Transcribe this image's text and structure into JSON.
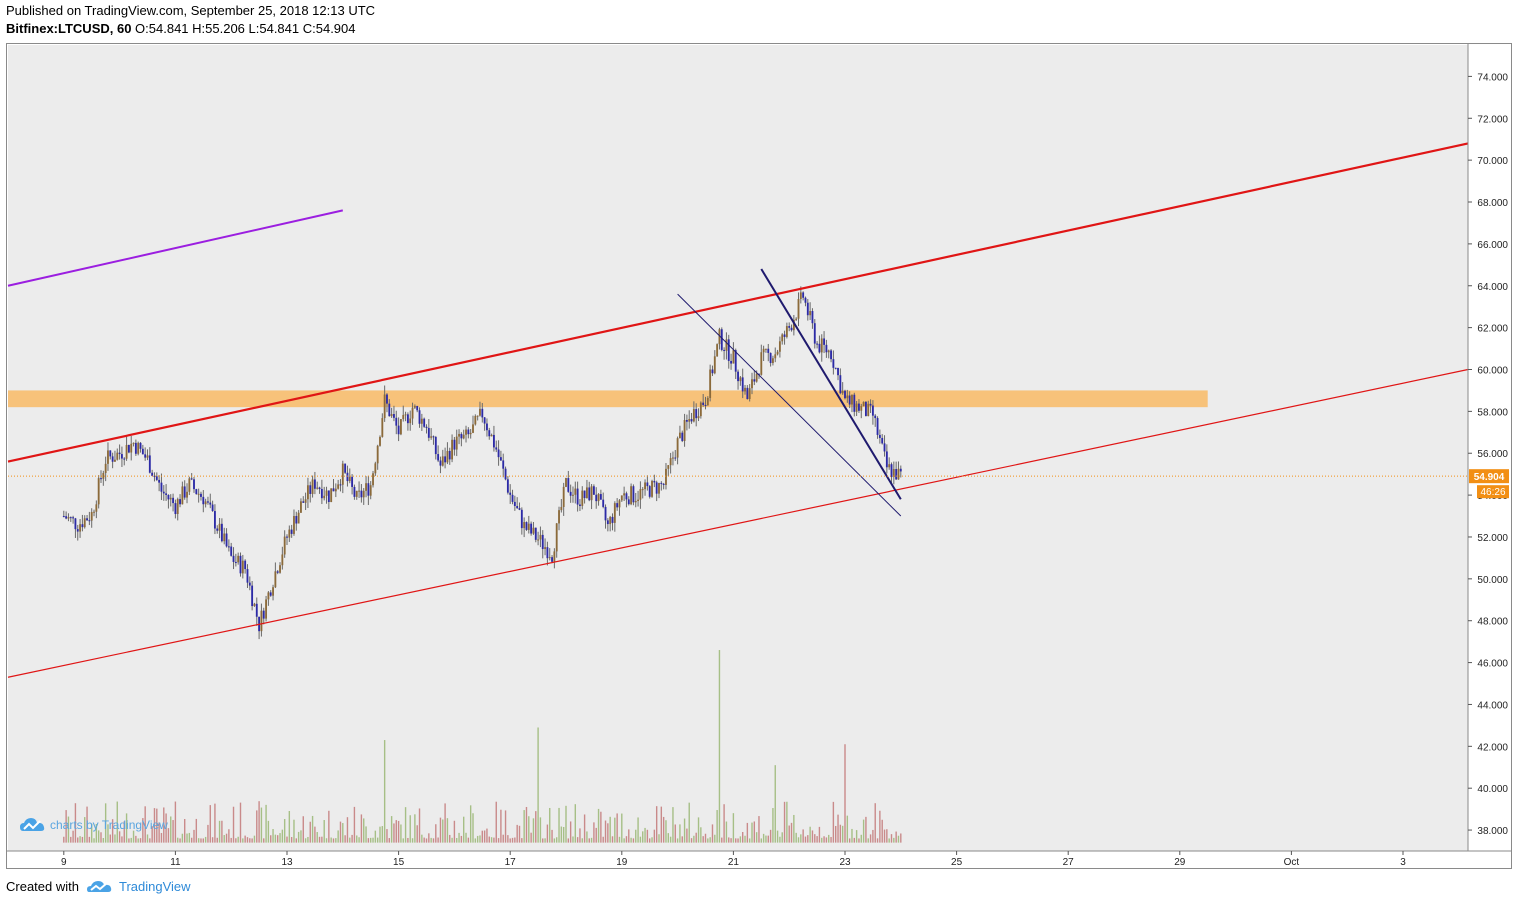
{
  "header": {
    "published": "Published on TradingView.com, September 25, 2018 12:13 UTC",
    "symbol": "Bitfinex:LTCUSD, 60",
    "ohlc": " O:54.841 H:55.206 L:54.841 C:54.904"
  },
  "footer": {
    "created_with": "Created with",
    "brand": "TradingView"
  },
  "watermark": {
    "text": "charts by TradingView"
  },
  "price_labels": {
    "last": "54.904",
    "countdown": "46:26"
  },
  "colors": {
    "plot_bg": "#ececec",
    "candle_up_body": "#8b6a3a",
    "candle_down_body": "#2c2aa6",
    "wick": "#6a6a6a",
    "vol_up": "#a6bf86",
    "vol_down": "#c98a8a",
    "channel_upper": "#e01515",
    "channel_lower": "#e01515",
    "purple_line": "#9b1ee0",
    "wedge": "#1f1a6e",
    "resistance_zone": "#f7c27a",
    "last_price": "#f28f14"
  },
  "icons": [
    "tradingview-logo-icon",
    "cloud-logo-icon"
  ],
  "chart_data": {
    "type": "candlestick",
    "title": "",
    "xlabel": "",
    "ylabel": "",
    "ylim": [
      37,
      75.5
    ],
    "grid": false,
    "y_ticks": [
      "38.000",
      "40.000",
      "42.000",
      "44.000",
      "46.000",
      "48.000",
      "50.000",
      "52.000",
      "54.000",
      "56.000",
      "58.000",
      "60.000",
      "62.000",
      "64.000",
      "66.000",
      "68.000",
      "70.000",
      "72.000",
      "74.000"
    ],
    "x_ticks": [
      "9",
      "11",
      "13",
      "15",
      "17",
      "19",
      "21",
      "23",
      "25",
      "27",
      "29",
      "Oct",
      "3"
    ],
    "price_path": [
      [
        "Sep 9 00:00",
        53.0
      ],
      [
        "Sep 9 06:00",
        52.6
      ],
      [
        "Sep 9 12:00",
        53.1
      ],
      [
        "Sep 9 18:00",
        55.7
      ],
      [
        "Sep 10 00:00",
        56.0
      ],
      [
        "Sep 10 06:00",
        56.5
      ],
      [
        "Sep 10 12:00",
        55.7
      ],
      [
        "Sep 10 18:00",
        54.2
      ],
      [
        "Sep 11 00:00",
        53.5
      ],
      [
        "Sep 11 06:00",
        54.5
      ],
      [
        "Sep 11 12:00",
        53.9
      ],
      [
        "Sep 11 18:00",
        52.5
      ],
      [
        "Sep 12 00:00",
        51.0
      ],
      [
        "Sep 12 06:00",
        50.5
      ],
      [
        "Sep 12 12:00",
        47.8
      ],
      [
        "Sep 12 18:00",
        50.0
      ],
      [
        "Sep 13 00:00",
        52.0
      ],
      [
        "Sep 13 06:00",
        53.5
      ],
      [
        "Sep 13 12:00",
        54.6
      ],
      [
        "Sep 13 18:00",
        54.0
      ],
      [
        "Sep 14 00:00",
        55.1
      ],
      [
        "Sep 14 06:00",
        53.8
      ],
      [
        "Sep 14 12:00",
        54.5
      ],
      [
        "Sep 14 18:00",
        58.5
      ],
      [
        "Sep 15 00:00",
        57.0
      ],
      [
        "Sep 15 06:00",
        58.2
      ],
      [
        "Sep 15 12:00",
        57.3
      ],
      [
        "Sep 15 18:00",
        55.4
      ],
      [
        "Sep 16 00:00",
        56.5
      ],
      [
        "Sep 16 06:00",
        56.8
      ],
      [
        "Sep 16 12:00",
        57.9
      ],
      [
        "Sep 16 18:00",
        56.2
      ],
      [
        "Sep 17 00:00",
        54.0
      ],
      [
        "Sep 17 06:00",
        52.5
      ],
      [
        "Sep 17 12:00",
        51.9
      ],
      [
        "Sep 17 18:00",
        51.2
      ],
      [
        "Sep 18 00:00",
        54.5
      ],
      [
        "Sep 18 06:00",
        53.8
      ],
      [
        "Sep 18 12:00",
        54.2
      ],
      [
        "Sep 18 18:00",
        52.5
      ],
      [
        "Sep 19 00:00",
        54.0
      ],
      [
        "Sep 19 06:00",
        54.0
      ],
      [
        "Sep 19 12:00",
        54.3
      ],
      [
        "Sep 19 18:00",
        54.5
      ],
      [
        "Sep 20 00:00",
        56.5
      ],
      [
        "Sep 20 06:00",
        57.8
      ],
      [
        "Sep 20 12:00",
        58.6
      ],
      [
        "Sep 20 18:00",
        61.5
      ],
      [
        "Sep 21 00:00",
        60.5
      ],
      [
        "Sep 21 06:00",
        58.6
      ],
      [
        "Sep 21 12:00",
        60.5
      ],
      [
        "Sep 21 18:00",
        60.8
      ],
      [
        "Sep 22 00:00",
        62.0
      ],
      [
        "Sep 22 06:00",
        63.5
      ],
      [
        "Sep 22 12:00",
        61.2
      ],
      [
        "Sep 22 18:00",
        60.8
      ],
      [
        "Sep 23 00:00",
        58.5
      ],
      [
        "Sep 23 06:00",
        58.2
      ],
      [
        "Sep 23 12:00",
        57.8
      ],
      [
        "Sep 23 18:00",
        55.3
      ],
      [
        "Sep 24 00:00",
        54.9
      ]
    ],
    "volume_peaks": [
      [
        "Sep 14 18:00",
        42.3
      ],
      [
        "Sep 17 12:00",
        42.9
      ],
      [
        "Sep 20 18:00",
        46.6
      ],
      [
        "Sep 21 18:00",
        41.1
      ],
      [
        "Sep 23 00:00",
        42.1
      ]
    ],
    "drawings": [
      {
        "kind": "rising channel upper",
        "from": [
          "Sep 8 00:00",
          55.6
        ],
        "to": [
          "Oct 6 00:00",
          70.8
        ]
      },
      {
        "kind": "rising channel lower",
        "from": [
          "Sep 8 00:00",
          45.3
        ],
        "to": [
          "Oct 6 00:00",
          60.0
        ]
      },
      {
        "kind": "purple trend line",
        "from": [
          "Sep 8 00:00",
          64.0
        ],
        "to": [
          "Sep 14 00:00",
          67.6
        ]
      },
      {
        "kind": "descending wedge upper",
        "from": [
          "Sep 21 12:00",
          64.8
        ],
        "to": [
          "Sep 24 00:00",
          53.8
        ]
      },
      {
        "kind": "descending wedge lower",
        "from": [
          "Sep 20 00:00",
          63.6
        ],
        "to": [
          "Sep 24 00:00",
          53.0
        ]
      },
      {
        "kind": "resistance zone",
        "from": "Sep 8 00:00",
        "to": "Sep 29 12:00",
        "y1": 58.2,
        "y2": 59.0
      }
    ],
    "last_price": 54.904,
    "last_price_line": true
  }
}
